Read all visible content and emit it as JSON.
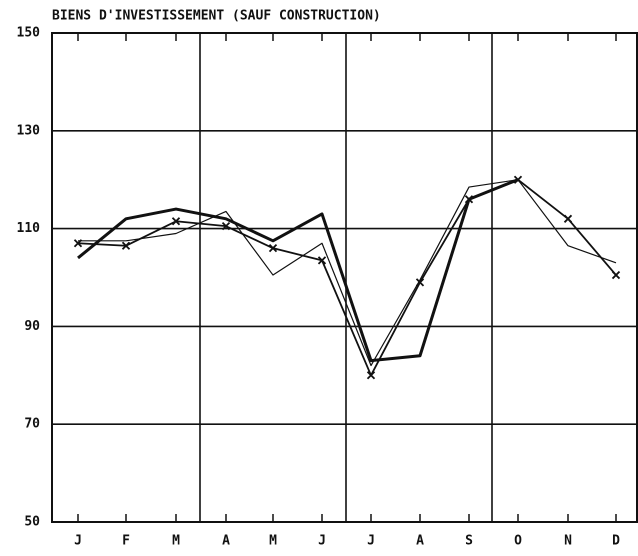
{
  "chart_data": {
    "type": "line",
    "title": "BIENS D'INVESTISSEMENT (SAUF CONSTRUCTION)",
    "categories": [
      "J",
      "F",
      "M",
      "A",
      "M",
      "J",
      "J",
      "A",
      "S",
      "O",
      "N",
      "D"
    ],
    "series": [
      {
        "color": "#111111",
        "width": 3,
        "marker": "none",
        "values": [
          104,
          112,
          114,
          112,
          107.5,
          113,
          83,
          84,
          116,
          120,
          null,
          null
        ]
      },
      {
        "color": "#111111",
        "width": 1.2,
        "marker": "none",
        "values": [
          107.5,
          107.5,
          109,
          113.5,
          100.5,
          107,
          82,
          99.5,
          118.5,
          120,
          106.5,
          103
        ]
      },
      {
        "color": "#111111",
        "width": 1.8,
        "marker": "x",
        "values": [
          107,
          106.5,
          111.5,
          110.5,
          106,
          103.5,
          80,
          99,
          116,
          120,
          112,
          100.5
        ]
      }
    ],
    "ylim": [
      50,
      150
    ],
    "yticks": [
      50,
      70,
      90,
      110,
      130,
      150
    ],
    "grid": true
  }
}
